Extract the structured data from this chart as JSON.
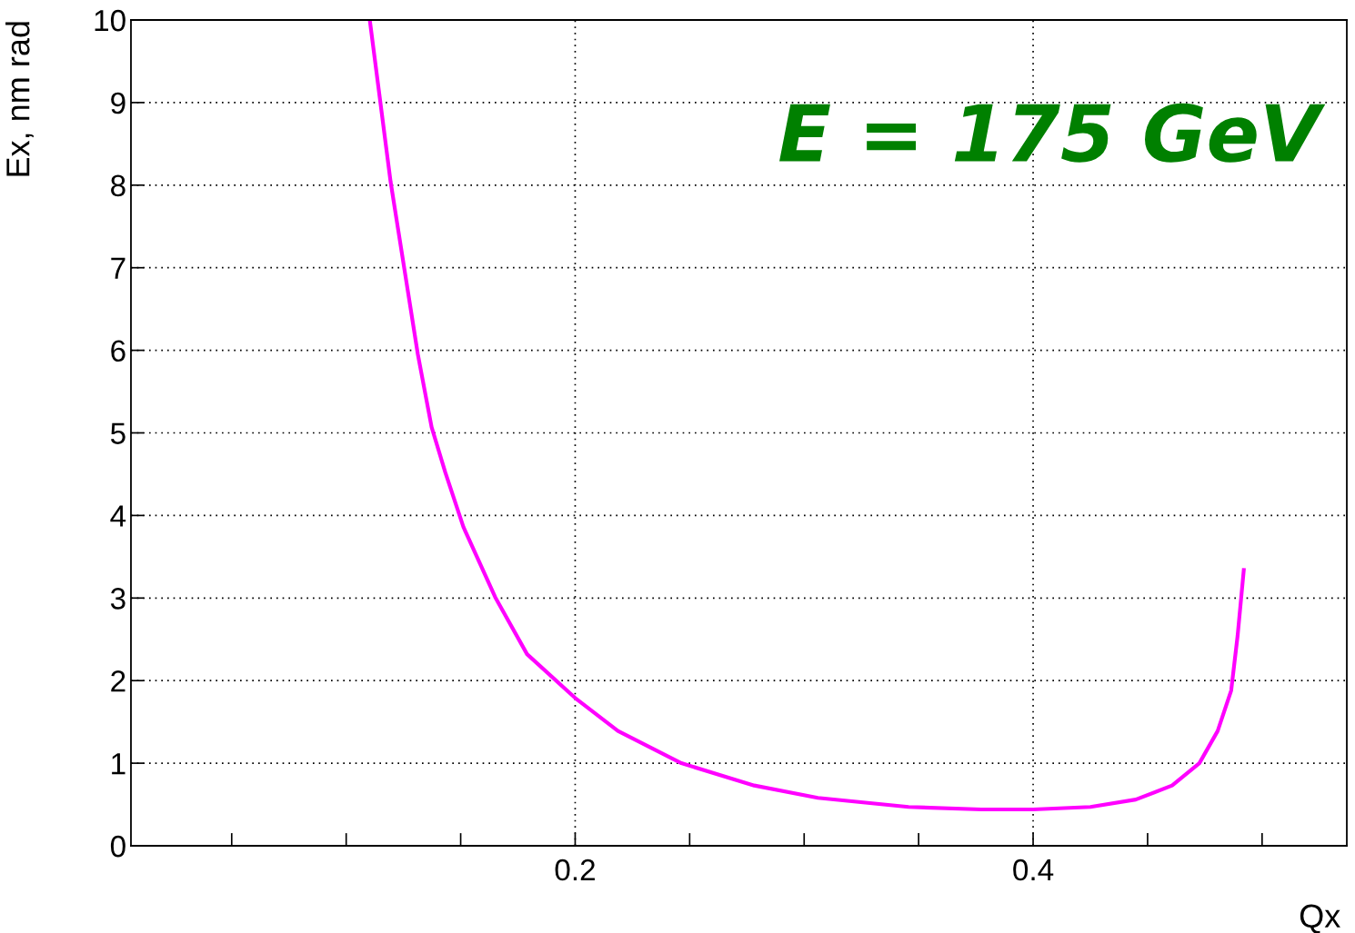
{
  "chart_data": {
    "type": "line",
    "xlabel": "Qx",
    "ylabel": "Ex, nm rad",
    "annotations": [
      "E = 175 GeV"
    ],
    "series": [
      {
        "color": "#ff00ff",
        "x": [
          0.1103,
          0.1194,
          0.1313,
          0.1373,
          0.1433,
          0.1512,
          0.1651,
          0.179,
          0.2,
          0.2187,
          0.2464,
          0.2782,
          0.306,
          0.3456,
          0.3774,
          0.4,
          0.425,
          0.4448,
          0.4607,
          0.4726,
          0.4806,
          0.4865,
          0.4893,
          0.492
        ],
        "values": [
          10.0,
          8.04,
          5.95,
          5.07,
          4.52,
          3.86,
          3.01,
          2.32,
          1.79,
          1.39,
          1.0,
          0.73,
          0.58,
          0.47,
          0.44,
          0.44,
          0.47,
          0.56,
          0.73,
          1.0,
          1.39,
          1.88,
          2.54,
          3.34
        ]
      }
    ],
    "xlim": [
      0.006,
      0.537
    ],
    "ylim": [
      0,
      10
    ],
    "xticks": [
      {
        "value": 0.05,
        "label": null
      },
      {
        "value": 0.1,
        "label": null
      },
      {
        "value": 0.15,
        "label": null
      },
      0.2,
      {
        "value": 0.25,
        "label": null
      },
      {
        "value": 0.3,
        "label": null
      },
      {
        "value": 0.35,
        "label": null
      },
      0.4,
      {
        "value": 0.45,
        "label": null
      },
      {
        "value": 0.5,
        "label": null
      }
    ],
    "yticks": [
      0,
      1,
      2,
      3,
      4,
      5,
      6,
      7,
      8,
      9,
      10
    ],
    "grid": true,
    "line_style": "solid",
    "marker": "none"
  }
}
